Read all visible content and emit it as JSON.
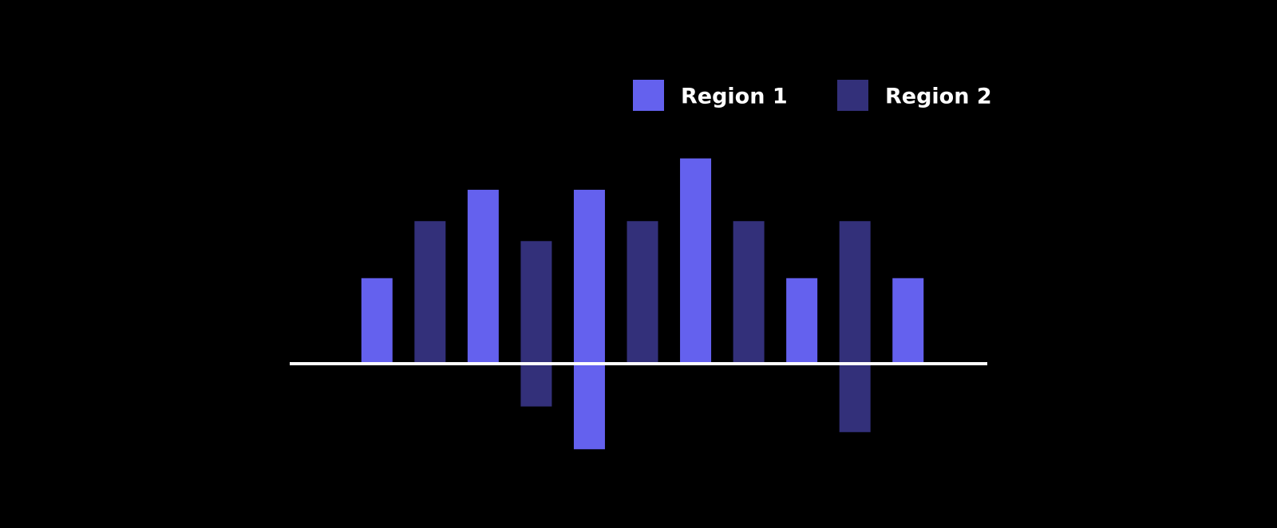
{
  "chart_data": {
    "type": "bar",
    "categories": [
      null,
      null,
      null,
      null,
      null,
      null,
      null,
      null,
      null,
      null,
      null
    ],
    "series": [
      {
        "name": "Region 1",
        "color": "#6461ee",
        "low": [
          0,
          null,
          0,
          null,
          -3,
          null,
          0,
          null,
          0,
          null,
          0
        ],
        "values": [
          3,
          null,
          6.1,
          null,
          6.1,
          null,
          7.2,
          null,
          3,
          null,
          3
        ]
      },
      {
        "name": "Region 2",
        "color": "#33307a",
        "low": [
          null,
          0,
          null,
          -1.5,
          null,
          0,
          null,
          0,
          null,
          -2.4,
          null
        ],
        "values": [
          null,
          5,
          null,
          4.3,
          null,
          5,
          null,
          5,
          null,
          5,
          null
        ]
      }
    ],
    "ylim": [
      -4,
      8
    ],
    "legend": "top-right"
  }
}
